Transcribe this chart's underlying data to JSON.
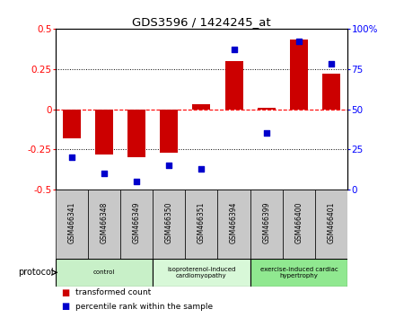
{
  "title": "GDS3596 / 1424245_at",
  "samples": [
    "GSM466341",
    "GSM466348",
    "GSM466349",
    "GSM466350",
    "GSM466351",
    "GSM466394",
    "GSM466399",
    "GSM466400",
    "GSM466401"
  ],
  "bar_values": [
    -0.18,
    -0.28,
    -0.3,
    -0.27,
    0.03,
    0.3,
    0.01,
    0.43,
    0.22
  ],
  "dot_values": [
    20,
    10,
    5,
    15,
    13,
    87,
    35,
    92,
    78
  ],
  "groups": [
    {
      "label": "control",
      "start": 0,
      "end": 3,
      "color": "#c8f0c8"
    },
    {
      "label": "isoproterenol-induced\ncardiomyopathy",
      "start": 3,
      "end": 6,
      "color": "#d8f8d8"
    },
    {
      "label": "exercise-induced cardiac\nhypertrophy",
      "start": 6,
      "end": 9,
      "color": "#90e890"
    }
  ],
  "bar_color": "#cc0000",
  "dot_color": "#0000cc",
  "ylim_left": [
    -0.5,
    0.5
  ],
  "ylim_right": [
    0,
    100
  ],
  "yticks_left": [
    -0.5,
    -0.25,
    0.0,
    0.25,
    0.5
  ],
  "yticks_right": [
    0,
    25,
    50,
    75,
    100
  ],
  "ytick_labels_left": [
    "-0.5",
    "-0.25",
    "0",
    "0.25",
    "0.5"
  ],
  "ytick_labels_right": [
    "0",
    "25",
    "50",
    "75",
    "100%"
  ],
  "hline_y": 0.0,
  "dotted_lines": [
    -0.25,
    0.25
  ],
  "bg_color": "#ffffff",
  "protocol_label": "protocol",
  "legend_bar": "transformed count",
  "legend_dot": "percentile rank within the sample",
  "box_color": "#c8c8c8"
}
